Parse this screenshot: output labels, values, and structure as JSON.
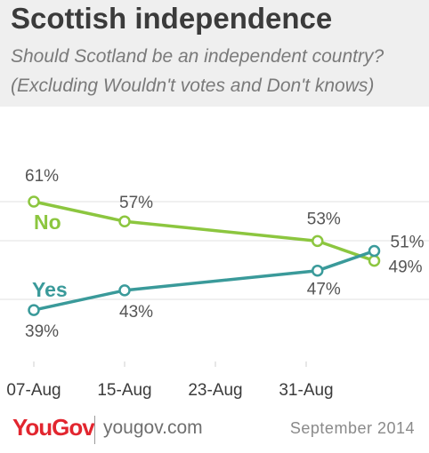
{
  "header": {
    "title": "Scottish independence",
    "subtitle_line1": "Should Scotland be an independent country?",
    "subtitle_line2": "(Excluding Wouldn't votes and Don't knows)"
  },
  "footer": {
    "logo": "YouGov",
    "site": "yougov.com",
    "date": "September 2014"
  },
  "colors": {
    "no": "#8cc63f",
    "yes": "#3a9a9a",
    "grid": "#e2e2e2",
    "axis_text": "#3b3b3b",
    "label_text": "#555555"
  },
  "chart_data": {
    "type": "line",
    "x_ticks": [
      "07-Aug",
      "15-Aug",
      "23-Aug",
      "31-Aug"
    ],
    "grid": true,
    "series": [
      {
        "name": "No",
        "points": [
          {
            "x": "2014-08-07",
            "y": 61,
            "label": "61%"
          },
          {
            "x": "2014-08-15",
            "y": 57,
            "label": "57%"
          },
          {
            "x": "2014-09-01",
            "y": 53,
            "label": "53%"
          },
          {
            "x": "2014-09-06",
            "y": 49,
            "label": "49%"
          }
        ]
      },
      {
        "name": "Yes",
        "points": [
          {
            "x": "2014-08-07",
            "y": 39,
            "label": "39%"
          },
          {
            "x": "2014-08-15",
            "y": 43,
            "label": "43%"
          },
          {
            "x": "2014-09-01",
            "y": 47,
            "label": "47%"
          },
          {
            "x": "2014-09-06",
            "y": 51,
            "label": "51%"
          }
        ]
      }
    ]
  }
}
